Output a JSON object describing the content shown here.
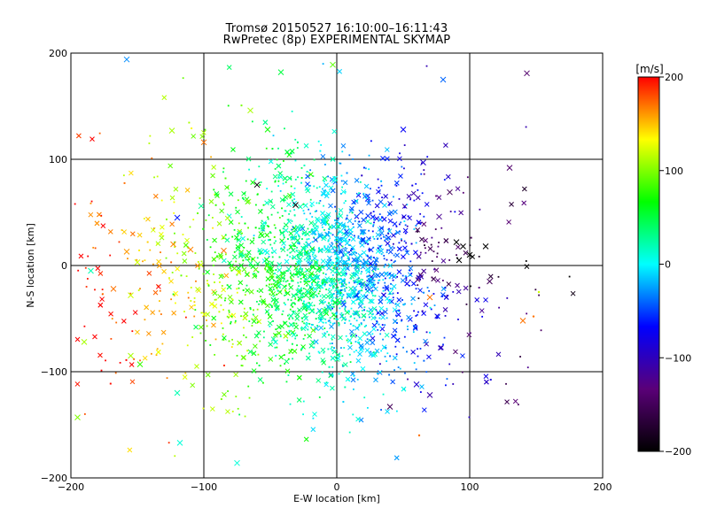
{
  "chart_data": {
    "type": "scatter",
    "title": "Tromsø 20150527 16:10:00–16:11:43",
    "subtitle": "RwPretec (8p) EXPERIMENTAL SKYMAP",
    "xlabel": "E-W location [km]",
    "ylabel": "N-S location [km]",
    "xlim": [
      -200,
      200
    ],
    "ylim": [
      -200,
      200
    ],
    "xticks": [
      -200,
      -100,
      0,
      100,
      200
    ],
    "yticks": [
      -200,
      -100,
      0,
      100,
      200
    ],
    "grid": true,
    "marker_styles": [
      "x",
      "dot"
    ],
    "colorbar": {
      "label": "[m/s]",
      "min": -200,
      "max": 200,
      "ticks": [
        -200,
        -100,
        0,
        100,
        200
      ],
      "colors": [
        "#000000",
        "#5a0078",
        "#0000ff",
        "#00ffff",
        "#00ff00",
        "#ffff00",
        "#ff0000"
      ]
    },
    "points": [
      {
        "x": -158,
        "y": 194,
        "v": -30,
        "m": "x"
      },
      {
        "x": -3,
        "y": 189,
        "v": 90,
        "m": "x"
      },
      {
        "x": -42,
        "y": 182,
        "v": 50,
        "m": "x"
      },
      {
        "x": 80,
        "y": 175,
        "v": -40,
        "m": "x"
      },
      {
        "x": 143,
        "y": 181,
        "v": -140,
        "m": "x"
      },
      {
        "x": -124,
        "y": 127,
        "v": 110,
        "m": "x"
      },
      {
        "x": -65,
        "y": 146,
        "v": 110,
        "m": "x"
      },
      {
        "x": -100,
        "y": 116,
        "v": 170,
        "m": "x"
      },
      {
        "x": -52,
        "y": 128,
        "v": 70,
        "m": "x"
      },
      {
        "x": 50,
        "y": 128,
        "v": -70,
        "m": "x"
      },
      {
        "x": 65,
        "y": 97,
        "v": -90,
        "m": "x"
      },
      {
        "x": 130,
        "y": 92,
        "v": -140,
        "m": "x"
      },
      {
        "x": -60,
        "y": 76,
        "v": -200,
        "m": "x"
      },
      {
        "x": -31,
        "y": 57,
        "v": -200,
        "m": "x"
      },
      {
        "x": -102,
        "y": 56,
        "v": 30,
        "m": "x"
      },
      {
        "x": -120,
        "y": 45,
        "v": -60,
        "m": "x"
      },
      {
        "x": 85,
        "y": 69,
        "v": -150,
        "m": "x"
      },
      {
        "x": 77,
        "y": 46,
        "v": -120,
        "m": "x"
      },
      {
        "x": -158,
        "y": 13,
        "v": 160,
        "m": "x"
      },
      {
        "x": -150,
        "y": 3,
        "v": 120,
        "m": "x"
      },
      {
        "x": -123,
        "y": 20,
        "v": 165,
        "m": "x"
      },
      {
        "x": -110,
        "y": 15,
        "v": 165,
        "m": "x"
      },
      {
        "x": -85,
        "y": 14,
        "v": 170,
        "m": "x"
      },
      {
        "x": -185,
        "y": -5,
        "v": 20,
        "m": "x"
      },
      {
        "x": -168,
        "y": -22,
        "v": 170,
        "m": "x"
      },
      {
        "x": -155,
        "y": -28,
        "v": 120,
        "m": "x"
      },
      {
        "x": -190,
        "y": -72,
        "v": 110,
        "m": "x"
      },
      {
        "x": -155,
        "y": -85,
        "v": 110,
        "m": "x"
      },
      {
        "x": -148,
        "y": -93,
        "v": 80,
        "m": "x"
      },
      {
        "x": -120,
        "y": -120,
        "v": 20,
        "m": "x"
      },
      {
        "x": -118,
        "y": -167,
        "v": 10,
        "m": "x"
      },
      {
        "x": -75,
        "y": -186,
        "v": 10,
        "m": "x"
      },
      {
        "x": -195,
        "y": -143,
        "v": 100,
        "m": "x"
      },
      {
        "x": 40,
        "y": -133,
        "v": -150,
        "m": "x"
      },
      {
        "x": 70,
        "y": -122,
        "v": -110,
        "m": "x"
      },
      {
        "x": 60,
        "y": -112,
        "v": -90,
        "m": "x"
      },
      {
        "x": 90,
        "y": 22,
        "v": -200,
        "m": "x"
      },
      {
        "x": 95,
        "y": 18,
        "v": -200,
        "m": "x"
      },
      {
        "x": 100,
        "y": 10,
        "v": -200,
        "m": "x"
      },
      {
        "x": 92,
        "y": 5,
        "v": -200,
        "m": "x"
      },
      {
        "x": 112,
        "y": 18,
        "v": -200,
        "m": "x"
      },
      {
        "x": 115,
        "y": -15,
        "v": -150,
        "m": "x"
      },
      {
        "x": 140,
        "y": -52,
        "v": 170,
        "m": "x"
      },
      {
        "x": 70,
        "y": -30,
        "v": 170,
        "m": "x"
      },
      {
        "x": 62,
        "y": -160,
        "v": 170,
        "m": "dot"
      },
      {
        "x": 148,
        "y": -48,
        "v": 170,
        "m": "dot"
      },
      {
        "x": 152,
        "y": -25,
        "v": 120,
        "m": "dot"
      }
    ]
  }
}
